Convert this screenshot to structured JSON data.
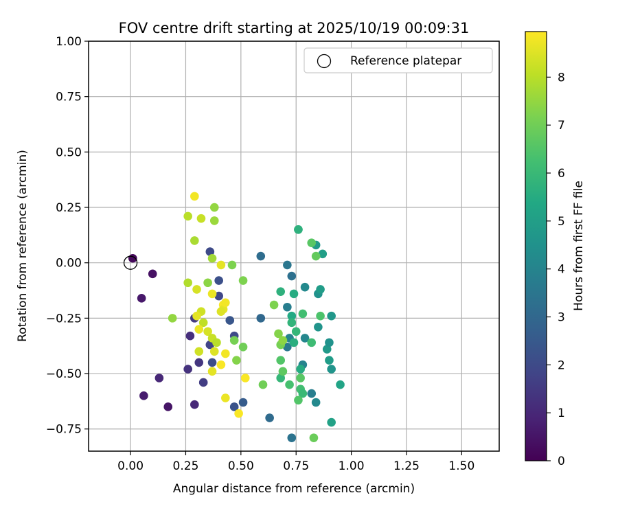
{
  "chart_data": {
    "type": "scatter",
    "title": "FOV centre drift starting at 2025/10/19 00:09:31",
    "xlabel": "Angular distance from reference (arcmin)",
    "ylabel": "Rotation from reference (arcmin)",
    "xlim": [
      -0.19,
      1.67
    ],
    "ylim": [
      -0.85,
      1.0
    ],
    "xticks": [
      0.0,
      0.25,
      0.5,
      0.75,
      1.0,
      1.25,
      1.5
    ],
    "xtick_labels": [
      "0.00",
      "0.25",
      "0.50",
      "0.75",
      "1.00",
      "1.25",
      "1.50"
    ],
    "yticks": [
      -0.75,
      -0.5,
      -0.25,
      0.0,
      0.25,
      0.5,
      0.75,
      1.0
    ],
    "ytick_labels": [
      "−0.75",
      "−0.50",
      "−0.25",
      "0.00",
      "0.25",
      "0.50",
      "0.75",
      "1.00"
    ],
    "grid": true,
    "legend": {
      "position": "top-right",
      "entries": [
        {
          "label": "Reference platepar",
          "marker": "open-circle"
        }
      ]
    },
    "reference_point": {
      "x": 0.0,
      "y": 0.0
    },
    "colorbar": {
      "label": "Hours from first FF file",
      "min": 0,
      "max": 8.95,
      "ticks": [
        0,
        1,
        2,
        3,
        4,
        5,
        6,
        7,
        8
      ],
      "tick_labels": [
        "0",
        "1",
        "2",
        "3",
        "4",
        "5",
        "6",
        "7",
        "8"
      ],
      "colormap": "viridis"
    },
    "points": [
      {
        "x": 0.01,
        "y": 0.02,
        "hours": 0.2
      },
      {
        "x": 0.1,
        "y": -0.05,
        "hours": 0.4
      },
      {
        "x": 0.05,
        "y": -0.16,
        "hours": 0.6
      },
      {
        "x": 0.13,
        "y": -0.52,
        "hours": 1.0
      },
      {
        "x": 0.06,
        "y": -0.6,
        "hours": 0.7
      },
      {
        "x": 0.17,
        "y": -0.65,
        "hours": 0.5
      },
      {
        "x": 0.26,
        "y": -0.48,
        "hours": 1.3
      },
      {
        "x": 0.27,
        "y": -0.33,
        "hours": 1.2
      },
      {
        "x": 0.29,
        "y": -0.25,
        "hours": 1.5
      },
      {
        "x": 0.29,
        "y": -0.64,
        "hours": 1.0
      },
      {
        "x": 0.31,
        "y": -0.45,
        "hours": 1.4
      },
      {
        "x": 0.33,
        "y": -0.54,
        "hours": 1.6
      },
      {
        "x": 0.36,
        "y": 0.05,
        "hours": 2.0
      },
      {
        "x": 0.36,
        "y": -0.37,
        "hours": 1.8
      },
      {
        "x": 0.37,
        "y": -0.45,
        "hours": 2.1
      },
      {
        "x": 0.4,
        "y": -0.08,
        "hours": 2.2
      },
      {
        "x": 0.4,
        "y": -0.15,
        "hours": 1.9
      },
      {
        "x": 0.45,
        "y": -0.26,
        "hours": 2.4
      },
      {
        "x": 0.47,
        "y": -0.33,
        "hours": 2.0
      },
      {
        "x": 0.47,
        "y": -0.65,
        "hours": 2.3
      },
      {
        "x": 0.51,
        "y": -0.63,
        "hours": 2.6
      },
      {
        "x": 0.59,
        "y": 0.03,
        "hours": 3.2
      },
      {
        "x": 0.59,
        "y": -0.25,
        "hours": 3.0
      },
      {
        "x": 0.63,
        "y": -0.7,
        "hours": 3.1
      },
      {
        "x": 0.71,
        "y": -0.01,
        "hours": 3.5
      },
      {
        "x": 0.73,
        "y": -0.06,
        "hours": 3.3
      },
      {
        "x": 0.71,
        "y": -0.2,
        "hours": 3.8
      },
      {
        "x": 0.72,
        "y": -0.34,
        "hours": 4.0
      },
      {
        "x": 0.71,
        "y": -0.38,
        "hours": 3.6
      },
      {
        "x": 0.73,
        "y": -0.79,
        "hours": 3.4
      },
      {
        "x": 0.79,
        "y": -0.11,
        "hours": 4.2
      },
      {
        "x": 0.79,
        "y": -0.34,
        "hours": 4.1
      },
      {
        "x": 0.78,
        "y": -0.46,
        "hours": 4.0
      },
      {
        "x": 0.82,
        "y": -0.59,
        "hours": 3.8
      },
      {
        "x": 0.84,
        "y": 0.08,
        "hours": 4.8
      },
      {
        "x": 0.85,
        "y": -0.14,
        "hours": 4.5
      },
      {
        "x": 0.85,
        "y": -0.29,
        "hours": 4.6
      },
      {
        "x": 0.84,
        "y": -0.63,
        "hours": 4.2
      },
      {
        "x": 0.86,
        "y": -0.12,
        "hours": 4.9
      },
      {
        "x": 0.87,
        "y": 0.04,
        "hours": 5.0
      },
      {
        "x": 0.89,
        "y": -0.39,
        "hours": 4.8
      },
      {
        "x": 0.9,
        "y": -0.36,
        "hours": 4.5
      },
      {
        "x": 0.91,
        "y": -0.24,
        "hours": 4.7
      },
      {
        "x": 0.9,
        "y": -0.44,
        "hours": 4.9
      },
      {
        "x": 0.91,
        "y": -0.48,
        "hours": 4.6
      },
      {
        "x": 0.91,
        "y": -0.72,
        "hours": 5.1
      },
      {
        "x": 0.95,
        "y": -0.55,
        "hours": 5.2
      },
      {
        "x": 0.76,
        "y": 0.15,
        "hours": 5.6
      },
      {
        "x": 0.68,
        "y": -0.13,
        "hours": 5.7
      },
      {
        "x": 0.74,
        "y": -0.14,
        "hours": 5.5
      },
      {
        "x": 0.73,
        "y": -0.24,
        "hours": 5.4
      },
      {
        "x": 0.73,
        "y": -0.27,
        "hours": 5.8
      },
      {
        "x": 0.75,
        "y": -0.31,
        "hours": 5.9
      },
      {
        "x": 0.74,
        "y": -0.36,
        "hours": 5.6
      },
      {
        "x": 0.77,
        "y": -0.48,
        "hours": 5.5
      },
      {
        "x": 0.68,
        "y": -0.52,
        "hours": 5.9
      },
      {
        "x": 0.76,
        "y": 0.15,
        "hours": 5.7
      },
      {
        "x": 0.82,
        "y": 0.09,
        "hours": 6.6
      },
      {
        "x": 0.84,
        "y": 0.03,
        "hours": 6.8
      },
      {
        "x": 0.78,
        "y": -0.23,
        "hours": 6.2
      },
      {
        "x": 0.86,
        "y": -0.24,
        "hours": 6.4
      },
      {
        "x": 0.82,
        "y": -0.36,
        "hours": 6.1
      },
      {
        "x": 0.68,
        "y": -0.44,
        "hours": 6.5
      },
      {
        "x": 0.69,
        "y": -0.49,
        "hours": 6.7
      },
      {
        "x": 0.72,
        "y": -0.55,
        "hours": 6.3
      },
      {
        "x": 0.77,
        "y": -0.52,
        "hours": 6.6
      },
      {
        "x": 0.77,
        "y": -0.57,
        "hours": 6.2
      },
      {
        "x": 0.78,
        "y": -0.59,
        "hours": 6.0
      },
      {
        "x": 0.76,
        "y": -0.62,
        "hours": 6.5
      },
      {
        "x": 0.83,
        "y": -0.79,
        "hours": 6.9
      },
      {
        "x": 0.6,
        "y": -0.55,
        "hours": 7.0
      },
      {
        "x": 0.65,
        "y": -0.19,
        "hours": 7.2
      },
      {
        "x": 0.67,
        "y": -0.32,
        "hours": 7.3
      },
      {
        "x": 0.68,
        "y": -0.37,
        "hours": 7.1
      },
      {
        "x": 0.69,
        "y": -0.35,
        "hours": 7.4
      },
      {
        "x": 0.51,
        "y": -0.08,
        "hours": 7.2
      },
      {
        "x": 0.51,
        "y": -0.38,
        "hours": 7.0
      },
      {
        "x": 0.48,
        "y": -0.44,
        "hours": 7.3
      },
      {
        "x": 0.47,
        "y": -0.35,
        "hours": 7.1
      },
      {
        "x": 0.46,
        "y": -0.01,
        "hours": 7.2
      },
      {
        "x": 0.38,
        "y": 0.25,
        "hours": 7.5
      },
      {
        "x": 0.38,
        "y": 0.19,
        "hours": 7.6
      },
      {
        "x": 0.37,
        "y": 0.02,
        "hours": 7.7
      },
      {
        "x": 0.35,
        "y": -0.09,
        "hours": 7.4
      },
      {
        "x": 0.19,
        "y": -0.25,
        "hours": 7.5
      },
      {
        "x": 0.26,
        "y": -0.09,
        "hours": 7.9
      },
      {
        "x": 0.29,
        "y": 0.1,
        "hours": 7.8
      },
      {
        "x": 0.26,
        "y": 0.21,
        "hours": 8.0
      },
      {
        "x": 0.32,
        "y": 0.2,
        "hours": 8.2
      },
      {
        "x": 0.29,
        "y": 0.3,
        "hours": 8.8
      },
      {
        "x": 0.41,
        "y": -0.01,
        "hours": 8.6
      },
      {
        "x": 0.3,
        "y": -0.12,
        "hours": 8.4
      },
      {
        "x": 0.37,
        "y": -0.14,
        "hours": 8.7
      },
      {
        "x": 0.42,
        "y": -0.19,
        "hours": 8.9
      },
      {
        "x": 0.42,
        "y": -0.21,
        "hours": 8.6
      },
      {
        "x": 0.41,
        "y": -0.22,
        "hours": 8.5
      },
      {
        "x": 0.43,
        "y": -0.18,
        "hours": 8.8
      },
      {
        "x": 0.32,
        "y": -0.22,
        "hours": 8.3
      },
      {
        "x": 0.33,
        "y": -0.27,
        "hours": 8.1
      },
      {
        "x": 0.3,
        "y": -0.24,
        "hours": 8.6
      },
      {
        "x": 0.31,
        "y": -0.3,
        "hours": 8.7
      },
      {
        "x": 0.35,
        "y": -0.31,
        "hours": 8.4
      },
      {
        "x": 0.37,
        "y": -0.34,
        "hours": 8.2
      },
      {
        "x": 0.39,
        "y": -0.36,
        "hours": 8.0
      },
      {
        "x": 0.31,
        "y": -0.4,
        "hours": 8.3
      },
      {
        "x": 0.38,
        "y": -0.4,
        "hours": 8.5
      },
      {
        "x": 0.43,
        "y": -0.41,
        "hours": 8.8
      },
      {
        "x": 0.41,
        "y": -0.46,
        "hours": 8.9
      },
      {
        "x": 0.37,
        "y": -0.49,
        "hours": 8.6
      },
      {
        "x": 0.52,
        "y": -0.52,
        "hours": 8.9
      },
      {
        "x": 0.43,
        "y": -0.61,
        "hours": 8.7
      },
      {
        "x": 0.49,
        "y": -0.68,
        "hours": 8.9
      }
    ]
  }
}
